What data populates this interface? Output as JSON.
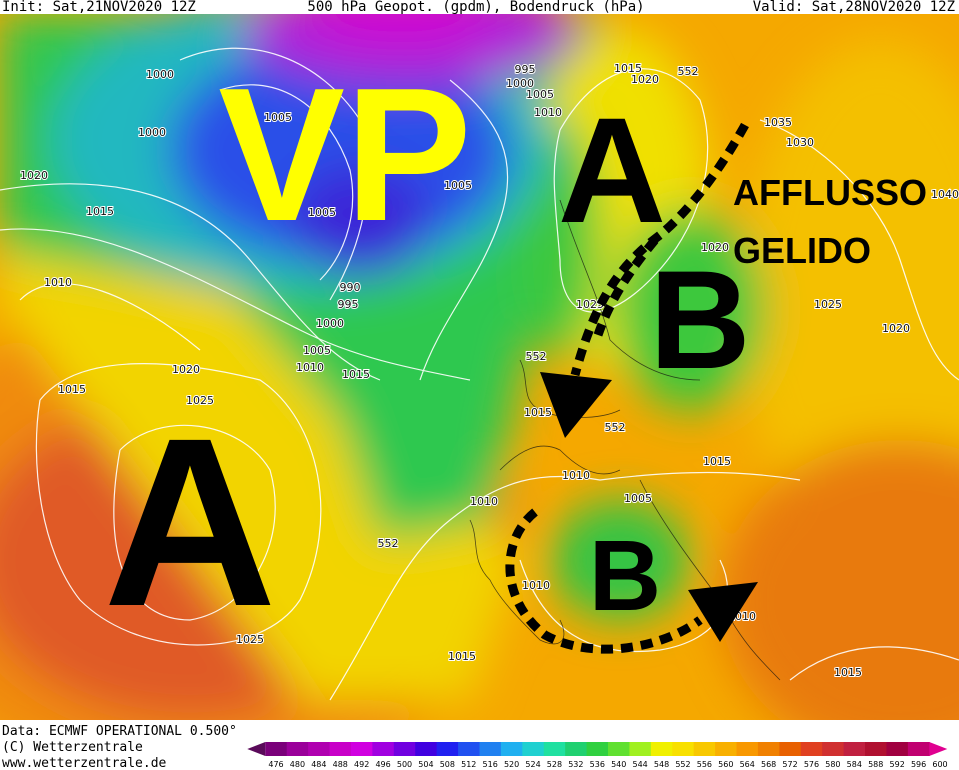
{
  "header": {
    "init": "Init: Sat,21NOV2020 12Z",
    "title": "500 hPa Geopot. (gpdm), Bodendruck (hPa)",
    "valid": "Valid: Sat,28NOV2020 12Z"
  },
  "annotations": {
    "vp": "VP",
    "high_west": "A",
    "high_north": "A",
    "low_north": "B",
    "low_south": "B",
    "flow_line1": "AFFLUSSO",
    "flow_line2": "GELIDO"
  },
  "isobar_labels": [
    "1000",
    "1000",
    "1005",
    "1020",
    "1015",
    "1010",
    "995",
    "1000",
    "1005",
    "1010",
    "1015",
    "1020",
    "552",
    "1035",
    "1030",
    "1005",
    "1005",
    "990",
    "995",
    "1000",
    "1005",
    "1010",
    "1015",
    "1020",
    "1025",
    "1025",
    "1020",
    "552",
    "1015",
    "552",
    "1015",
    "1010",
    "1005",
    "1010",
    "552",
    "1010",
    "1020",
    "1025",
    "1015",
    "1025",
    "1015",
    "1015",
    "1010",
    "1040"
  ],
  "footer": {
    "data": "Data: ECMWF OPERATIONAL 0.500°",
    "copyright": "(C) Wetterzentrale",
    "url": "www.wetterzentrale.de"
  },
  "colorbar": {
    "ticks": [
      476,
      480,
      484,
      488,
      492,
      496,
      500,
      504,
      508,
      512,
      516,
      520,
      524,
      528,
      532,
      536,
      540,
      544,
      548,
      552,
      556,
      560,
      564,
      568,
      572,
      576,
      580,
      584,
      588,
      592,
      596,
      600
    ],
    "colors": [
      "#5a0a5a",
      "#7a007a",
      "#9a009a",
      "#b000b0",
      "#c800c8",
      "#d000e0",
      "#a000e0",
      "#7000e0",
      "#4000e0",
      "#2020f0",
      "#2050f0",
      "#2080f0",
      "#20b0f0",
      "#20d0d0",
      "#20e0a0",
      "#20d070",
      "#30d040",
      "#60e030",
      "#a0f020",
      "#f0f000",
      "#f8e000",
      "#f8c800",
      "#f8b000",
      "#f89800",
      "#f08000",
      "#e86000",
      "#e04020",
      "#d03030",
      "#c02040",
      "#b01030",
      "#a00040",
      "#c00070",
      "#e00090"
    ]
  }
}
